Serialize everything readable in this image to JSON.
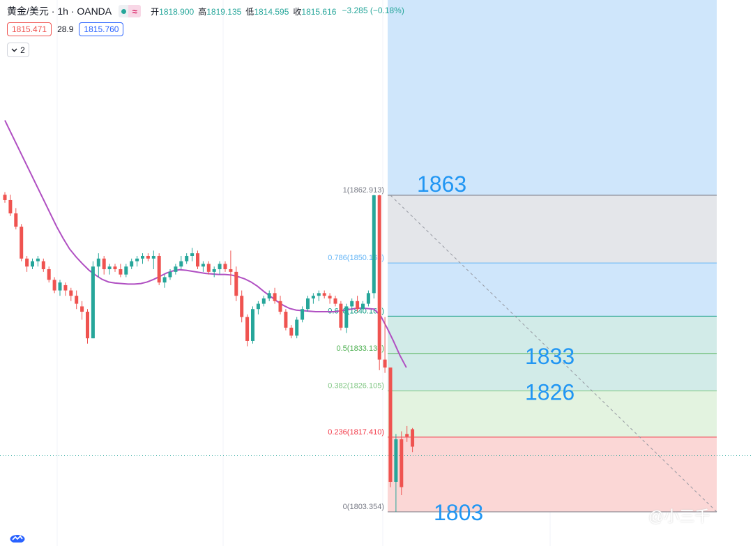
{
  "header": {
    "symbol": "黄金/美元 · 1h · OANDA",
    "open_label": "开",
    "open": "1818.900",
    "high_label": "高",
    "high": "1819.135",
    "low_label": "低",
    "low": "1814.595",
    "close_label": "收",
    "close": "1815.616",
    "change": "−3.285 (−0.18%)",
    "sell": "1815.471",
    "spread": "28.9",
    "buy": "1815.760",
    "collapse_count": "2"
  },
  "watermark": "@小三千",
  "icons": [
    "circle-status-icon",
    "wave-indicator-icon",
    "chevron-down-icon",
    "tradingview-logo-icon"
  ],
  "colors": {
    "up": "#26a69a",
    "down": "#ef5350",
    "ma": "#b04fc2",
    "fib_blue_zone": "#cfe6fb",
    "fib_grey_zone": "#e4e6ea",
    "fib_teal_zone": "#d2ebe8",
    "fib_green_zone": "#e3f3e0",
    "fib_red_zone": "#fbd7d6",
    "annotation": "#2196f3"
  },
  "chart_data": {
    "type": "candlestick",
    "title": "",
    "xlabel": "",
    "ylabel": "",
    "ylim": [
      1798,
      1885
    ],
    "candles": [
      [
        1863.0,
        1863.5,
        1861.5,
        1862.0
      ],
      [
        1862.0,
        1863.0,
        1859.0,
        1859.5
      ],
      [
        1859.5,
        1860.5,
        1856.5,
        1857.0
      ],
      [
        1857.0,
        1857.5,
        1850.5,
        1851.0
      ],
      [
        1851.0,
        1851.5,
        1848.5,
        1849.5
      ],
      [
        1849.5,
        1851.0,
        1849.0,
        1850.5
      ],
      [
        1850.5,
        1851.5,
        1849.5,
        1851.0
      ],
      [
        1850.5,
        1851.0,
        1848.5,
        1849.0
      ],
      [
        1849.0,
        1849.5,
        1846.5,
        1847.0
      ],
      [
        1847.0,
        1847.5,
        1844.5,
        1845.0
      ],
      [
        1845.0,
        1847.0,
        1844.0,
        1846.5
      ],
      [
        1846.0,
        1846.5,
        1844.0,
        1845.0
      ],
      [
        1845.0,
        1845.5,
        1843.0,
        1844.0
      ],
      [
        1844.0,
        1845.0,
        1841.5,
        1842.5
      ],
      [
        1842.0,
        1843.0,
        1839.5,
        1841.0
      ],
      [
        1841.0,
        1841.5,
        1835.0,
        1836.0
      ],
      [
        1836.0,
        1850.5,
        1836.0,
        1849.5
      ],
      [
        1849.5,
        1852.0,
        1847.5,
        1851.0
      ],
      [
        1851.0,
        1851.5,
        1848.0,
        1849.0
      ],
      [
        1849.0,
        1850.0,
        1848.0,
        1849.5
      ],
      [
        1849.5,
        1850.0,
        1848.5,
        1849.0
      ],
      [
        1849.0,
        1850.0,
        1847.5,
        1848.0
      ],
      [
        1848.0,
        1850.0,
        1847.5,
        1849.5
      ],
      [
        1849.5,
        1851.0,
        1849.0,
        1850.5
      ],
      [
        1850.5,
        1851.5,
        1849.5,
        1851.0
      ],
      [
        1851.0,
        1852.0,
        1850.0,
        1851.5
      ],
      [
        1851.5,
        1852.0,
        1850.5,
        1851.0
      ],
      [
        1851.0,
        1852.5,
        1849.0,
        1851.5
      ],
      [
        1851.5,
        1852.0,
        1846.0,
        1846.5
      ],
      [
        1846.5,
        1848.0,
        1845.5,
        1847.5
      ],
      [
        1847.5,
        1849.0,
        1847.0,
        1848.5
      ],
      [
        1848.5,
        1850.0,
        1848.0,
        1849.5
      ],
      [
        1849.5,
        1851.5,
        1849.0,
        1850.5
      ],
      [
        1850.5,
        1852.0,
        1850.0,
        1851.5
      ],
      [
        1851.5,
        1853.0,
        1850.5,
        1852.0
      ],
      [
        1852.0,
        1852.5,
        1849.0,
        1849.5
      ],
      [
        1849.5,
        1850.5,
        1848.5,
        1850.0
      ],
      [
        1850.0,
        1850.5,
        1848.0,
        1848.5
      ],
      [
        1848.5,
        1849.5,
        1847.5,
        1849.0
      ],
      [
        1849.0,
        1850.5,
        1848.0,
        1850.0
      ],
      [
        1850.0,
        1850.5,
        1848.5,
        1849.0
      ],
      [
        1849.0,
        1852.5,
        1846.0,
        1848.5
      ],
      [
        1848.5,
        1849.5,
        1843.0,
        1844.0
      ],
      [
        1844.0,
        1845.0,
        1839.0,
        1840.0
      ],
      [
        1840.0,
        1840.5,
        1834.5,
        1835.5
      ],
      [
        1835.5,
        1842.0,
        1835.0,
        1841.5
      ],
      [
        1841.5,
        1843.0,
        1840.5,
        1842.5
      ],
      [
        1842.5,
        1844.0,
        1842.0,
        1843.5
      ],
      [
        1843.5,
        1845.0,
        1843.0,
        1844.5
      ],
      [
        1844.5,
        1845.5,
        1842.5,
        1843.0
      ],
      [
        1843.0,
        1844.0,
        1840.5,
        1841.0
      ],
      [
        1841.0,
        1841.5,
        1837.5,
        1838.0
      ],
      [
        1838.0,
        1838.5,
        1836.0,
        1836.5
      ],
      [
        1836.5,
        1840.0,
        1836.0,
        1839.5
      ],
      [
        1839.5,
        1842.0,
        1839.0,
        1841.5
      ],
      [
        1841.5,
        1844.0,
        1841.0,
        1843.5
      ],
      [
        1843.5,
        1844.5,
        1842.5,
        1844.0
      ],
      [
        1844.0,
        1845.0,
        1843.0,
        1844.5
      ],
      [
        1844.5,
        1845.0,
        1843.5,
        1844.0
      ],
      [
        1844.0,
        1844.5,
        1842.5,
        1843.5
      ],
      [
        1843.5,
        1844.0,
        1842.0,
        1842.5
      ],
      [
        1842.5,
        1843.0,
        1837.5,
        1838.0
      ],
      [
        1838.0,
        1842.5,
        1837.0,
        1842.0
      ],
      [
        1842.0,
        1843.5,
        1841.5,
        1843.0
      ],
      [
        1843.0,
        1844.0,
        1841.0,
        1841.5
      ],
      [
        1841.5,
        1843.0,
        1841.0,
        1842.5
      ],
      [
        1842.5,
        1845.0,
        1842.0,
        1844.5
      ],
      [
        1844.5,
        1863.0,
        1843.5,
        1862.9
      ],
      [
        1862.9,
        1863.0,
        1830.0,
        1832.0
      ],
      [
        1832.0,
        1840.0,
        1829.5,
        1830.5
      ],
      [
        1830.5,
        1830.5,
        1808.0,
        1809.0
      ],
      [
        1809.0,
        1818.0,
        1803.354,
        1817.0
      ],
      [
        1817.0,
        1818.5,
        1806.5,
        1808.0
      ],
      [
        1818.0,
        1819.5,
        1816.5,
        1817.5
      ],
      [
        1818.9,
        1819.135,
        1814.595,
        1815.616
      ]
    ],
    "ma_series": [
      1877.0,
      1874.5,
      1872.0,
      1869.5,
      1867.0,
      1864.5,
      1862.0,
      1859.5,
      1857.0,
      1854.8,
      1852.8,
      1851.3,
      1850.0,
      1848.8,
      1847.9,
      1847.1,
      1846.6,
      1846.4,
      1846.3,
      1846.2,
      1846.2,
      1846.3,
      1846.6,
      1847.1,
      1847.7,
      1848.3,
      1848.7,
      1848.9,
      1848.8,
      1848.6,
      1848.4,
      1848.2,
      1848.1,
      1848.0,
      1848.0,
      1847.9,
      1847.6,
      1847.2,
      1846.6,
      1845.8,
      1844.8,
      1843.9,
      1843.0,
      1842.2,
      1841.6,
      1841.3,
      1841.2,
      1841.1,
      1841.0,
      1841.0,
      1841.0,
      1841.0,
      1841.2,
      1841.4,
      1841.6,
      1841.7,
      1841.6,
      1841.5,
      1840.3,
      1838.0,
      1835.5,
      1832.8,
      1830.5
    ],
    "fibonacci": {
      "levels": [
        {
          "ratio": "1",
          "price": 1862.913,
          "label": "1(1862.913)",
          "color": "#787b86"
        },
        {
          "ratio": "0.786",
          "price": 1850.168,
          "label": "0.786(1850.168)",
          "color": "#64b5f6"
        },
        {
          "ratio": "0.618",
          "price": 1840.162,
          "label": "0.618(1840.162)",
          "color": "#089981"
        },
        {
          "ratio": "0.5",
          "price": 1833.134,
          "label": "0.5(1833.134)",
          "color": "#4caf50"
        },
        {
          "ratio": "0.382",
          "price": 1826.105,
          "label": "0.382(1826.105)",
          "color": "#81c784"
        },
        {
          "ratio": "0.236",
          "price": 1817.41,
          "label": "0.236(1817.410)",
          "color": "#f23645"
        },
        {
          "ratio": "0",
          "price": 1803.354,
          "label": "0(1803.354)",
          "color": "#787b86"
        }
      ]
    },
    "annotations": [
      "1863",
      "1833",
      "1826",
      "1803"
    ],
    "current_price_line": 1815.616
  }
}
